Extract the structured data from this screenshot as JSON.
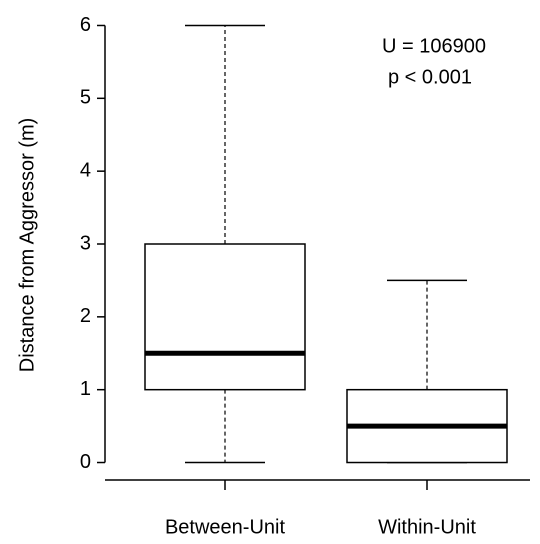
{
  "chart_data": {
    "type": "box",
    "y_label": "Distance from Aggressor (m)",
    "categories": [
      "Between-Unit",
      "Within-Unit"
    ],
    "boxes": [
      {
        "min": 0,
        "q1": 1,
        "median": 1.5,
        "q3": 3,
        "max": 6
      },
      {
        "min": 0,
        "q1": 0,
        "median": 0.5,
        "q3": 1,
        "max": 2.5
      }
    ],
    "annotations": [
      "U = 106900",
      "p < 0.001"
    ],
    "ylim": [
      -0.24,
      6.24
    ],
    "yticks": [
      0,
      1,
      2,
      3,
      4,
      5,
      6
    ],
    "color": "#000000",
    "fill": "#ffffff"
  }
}
